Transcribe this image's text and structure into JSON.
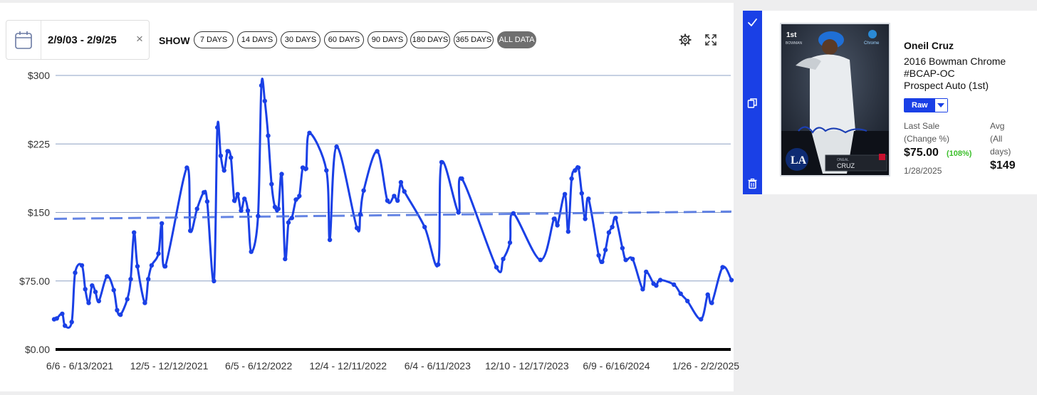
{
  "toolbar": {
    "date_range": "2/9/03 - 2/9/25",
    "show_label": "SHOW",
    "range_buttons": [
      "7 DAYS",
      "14 DAYS",
      "30 DAYS",
      "60 DAYS",
      "90 DAYS",
      "180 DAYS",
      "365 DAYS",
      "ALL DATA"
    ],
    "active_range": "ALL DATA",
    "icons": [
      "calendar-icon",
      "close-icon",
      "settings-icon",
      "expand-icon"
    ]
  },
  "card": {
    "player": "Oneil Cruz",
    "title_lines": [
      "2016 Bowman Chrome",
      "#BCAP-OC",
      "Prospect Auto (1st)"
    ],
    "grade": "Raw",
    "last_sale_label_lines": [
      "Last Sale",
      "(Change %)"
    ],
    "last_sale_value": "$75.00",
    "last_sale_change": "(108%)",
    "last_sale_date": "1/28/2025",
    "avg_label_lines": [
      "Avg",
      "(All",
      "days)"
    ],
    "avg_value": "$149",
    "sidebar_icons": [
      "check-icon",
      "copy-icon",
      "trash-icon"
    ],
    "image_text": {
      "badge": "1st",
      "brand": "BOWMAN",
      "logo": "Chrome",
      "team": "LA",
      "name_small": "ONEAL",
      "name_big": "CRUZ"
    },
    "colors": {
      "accent": "#1a40e6",
      "change": "#3bbf2a"
    }
  },
  "chart_data": {
    "type": "line",
    "ylim": [
      0,
      300
    ],
    "y_ticks": [
      0,
      75,
      150,
      225,
      300
    ],
    "y_tick_labels": [
      "$0.00",
      "$75.00",
      "$150",
      "$225",
      "$300"
    ],
    "x_tick_labels": [
      "6/6 - 6/13/2021",
      "12/5 - 12/12/2021",
      "6/5 - 6/12/2022",
      "12/4 - 12/11/2022",
      "6/4 - 6/11/2023",
      "12/10 - 12/17/2023",
      "6/9 - 6/16/2024",
      "1/26 - 2/2/2025"
    ],
    "x_range": [
      0,
      100
    ],
    "grid": true,
    "series": [
      {
        "style": "solid",
        "color": "#1a40e6",
        "points": [
          [
            0,
            33
          ],
          [
            0.4,
            34
          ],
          [
            1.2,
            39
          ],
          [
            1.6,
            26
          ],
          [
            2.6,
            30
          ],
          [
            3.1,
            84
          ],
          [
            4.1,
            92
          ],
          [
            4.6,
            66
          ],
          [
            5.1,
            51
          ],
          [
            5.6,
            70
          ],
          [
            6.1,
            63
          ],
          [
            6.6,
            53
          ],
          [
            7.8,
            80
          ],
          [
            8.8,
            65
          ],
          [
            9.3,
            43
          ],
          [
            9.8,
            38
          ],
          [
            10.8,
            55
          ],
          [
            11.3,
            77
          ],
          [
            11.8,
            128
          ],
          [
            12.3,
            91
          ],
          [
            13.4,
            51
          ],
          [
            13.9,
            77
          ],
          [
            14.4,
            92
          ],
          [
            15.4,
            105
          ],
          [
            15.9,
            138
          ],
          [
            16.4,
            91
          ],
          [
            19.6,
            199
          ],
          [
            20.1,
            130
          ],
          [
            21.1,
            154
          ],
          [
            22.1,
            172
          ],
          [
            22.6,
            162
          ],
          [
            23.6,
            75
          ],
          [
            24.1,
            243
          ],
          [
            24.6,
            212
          ],
          [
            25.1,
            196
          ],
          [
            25.6,
            217
          ],
          [
            26.1,
            210
          ],
          [
            26.6,
            163
          ],
          [
            27.1,
            170
          ],
          [
            27.6,
            152
          ],
          [
            28.1,
            165
          ],
          [
            28.6,
            152
          ],
          [
            29.1,
            107
          ],
          [
            30.1,
            146
          ],
          [
            30.6,
            289
          ],
          [
            31.1,
            272
          ],
          [
            31.6,
            234
          ],
          [
            32.1,
            181
          ],
          [
            32.6,
            156
          ],
          [
            33.1,
            154
          ],
          [
            33.6,
            192
          ],
          [
            34.1,
            99
          ],
          [
            34.6,
            139
          ],
          [
            35.1,
            144
          ],
          [
            35.7,
            164
          ],
          [
            36.2,
            168
          ],
          [
            36.7,
            199
          ],
          [
            37.2,
            198
          ],
          [
            37.7,
            237
          ],
          [
            40.2,
            196
          ],
          [
            40.7,
            120
          ],
          [
            41.7,
            222
          ],
          [
            44.7,
            133
          ],
          [
            45.2,
            148
          ],
          [
            45.7,
            174
          ],
          [
            47.7,
            217
          ],
          [
            49.2,
            163
          ],
          [
            50.2,
            168
          ],
          [
            50.7,
            163
          ],
          [
            51.2,
            183
          ],
          [
            51.7,
            173
          ],
          [
            54.7,
            134
          ],
          [
            56.7,
            93
          ],
          [
            57.2,
            205
          ],
          [
            59.7,
            150
          ],
          [
            60.2,
            187
          ],
          [
            65.3,
            90
          ],
          [
            66.3,
            99
          ],
          [
            67.3,
            117
          ],
          [
            67.8,
            149
          ],
          [
            71.8,
            98
          ],
          [
            73.8,
            143
          ],
          [
            74.3,
            136
          ],
          [
            75.4,
            170
          ],
          [
            75.9,
            129
          ],
          [
            76.4,
            187
          ],
          [
            76.9,
            196
          ],
          [
            77.4,
            199
          ],
          [
            77.9,
            171
          ],
          [
            78.4,
            143
          ],
          [
            78.9,
            165
          ],
          [
            80.4,
            103
          ],
          [
            80.9,
            96
          ],
          [
            81.4,
            109
          ],
          [
            81.9,
            128
          ],
          [
            82.4,
            134
          ],
          [
            82.9,
            144
          ],
          [
            83.9,
            111
          ],
          [
            84.4,
            98
          ],
          [
            85.4,
            99
          ],
          [
            86.9,
            66
          ],
          [
            87.4,
            85
          ],
          [
            88.5,
            72
          ],
          [
            88.9,
            70
          ],
          [
            89.5,
            76
          ],
          [
            91.5,
            71
          ],
          [
            92.5,
            61
          ],
          [
            93.5,
            53
          ],
          [
            95.5,
            33
          ],
          [
            96.5,
            60
          ],
          [
            97.1,
            51
          ],
          [
            98.7,
            90
          ],
          [
            100,
            76
          ]
        ]
      },
      {
        "style": "dashed",
        "color": "#4a6fe0",
        "points": [
          [
            0,
            143
          ],
          [
            100,
            151
          ]
        ]
      }
    ]
  }
}
